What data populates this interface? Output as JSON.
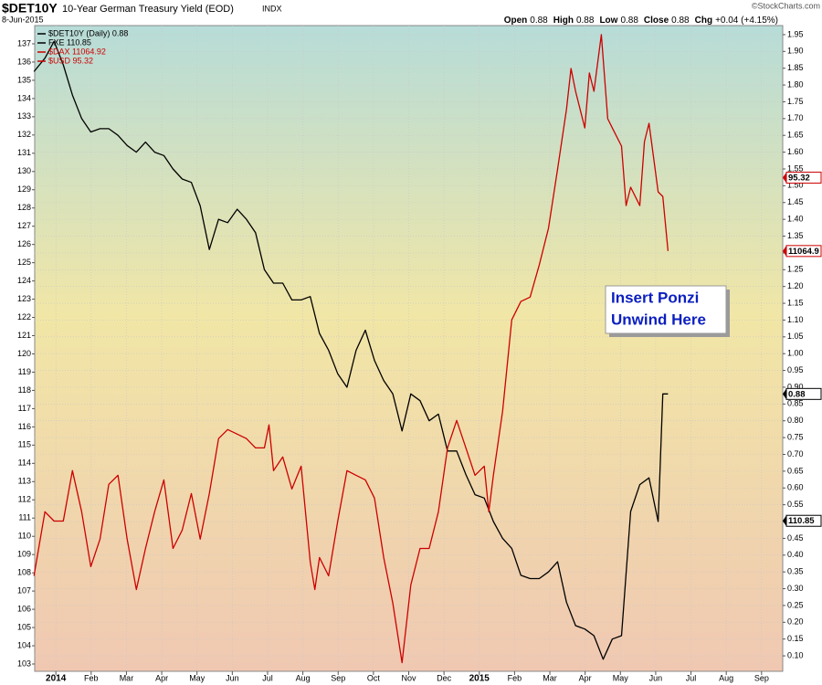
{
  "header": {
    "symbol": "$DET10Y",
    "name": "10-Year German Treasury Yield (EOD)",
    "exchange": "INDX",
    "date": "8-Jun-2015",
    "quote": [
      {
        "label": "Open",
        "value": "0.88"
      },
      {
        "label": "High",
        "value": "0.88"
      },
      {
        "label": "Low",
        "value": "0.88"
      },
      {
        "label": "Close",
        "value": "0.88"
      },
      {
        "label": "Chg",
        "value": "+0.04 (+4.15%)"
      }
    ],
    "credit": "©StockCharts.com"
  },
  "chart_data": {
    "type": "line",
    "annotation": [
      "Insert Ponzi",
      "Unwind Here"
    ],
    "xlim": [
      -0.6,
      20.6
    ],
    "xticks": [
      {
        "value": 0,
        "label": "2014"
      },
      {
        "value": 1,
        "label": "Feb"
      },
      {
        "value": 2,
        "label": "Mar"
      },
      {
        "value": 3,
        "label": "Apr"
      },
      {
        "value": 4,
        "label": "May"
      },
      {
        "value": 5,
        "label": "Jun"
      },
      {
        "value": 6,
        "label": "Jul"
      },
      {
        "value": 7,
        "label": "Aug"
      },
      {
        "value": 8,
        "label": "Sep"
      },
      {
        "value": 9,
        "label": "Oct"
      },
      {
        "value": 10,
        "label": "Nov"
      },
      {
        "value": 11,
        "label": "Dec"
      },
      {
        "value": 12,
        "label": "2015"
      },
      {
        "value": 13,
        "label": "Feb"
      },
      {
        "value": 14,
        "label": "Mar"
      },
      {
        "value": 15,
        "label": "Apr"
      },
      {
        "value": 16,
        "label": "May"
      },
      {
        "value": 17,
        "label": "Jun"
      },
      {
        "value": 18,
        "label": "Jul"
      },
      {
        "value": 19,
        "label": "Aug"
      },
      {
        "value": 20,
        "label": "Sep"
      }
    ],
    "ylim": [
      102.6,
      138
    ],
    "yticks": [
      103,
      104,
      105,
      106,
      107,
      108,
      109,
      110,
      111,
      112,
      113,
      114,
      115,
      116,
      117,
      118,
      119,
      120,
      121,
      122,
      123,
      124,
      125,
      126,
      127,
      128,
      129,
      130,
      131,
      132,
      133,
      134,
      135,
      136,
      137
    ],
    "y2lim": [
      0.054,
      1.977
    ],
    "y2ticks": [
      {
        "value": 0.1,
        "label": "0.10"
      },
      0.15,
      {
        "value": 0.2,
        "label": "0.20"
      },
      0.25,
      {
        "value": 0.3,
        "label": "0.30"
      },
      0.35,
      {
        "value": 0.4,
        "label": "0.40"
      },
      0.45,
      {
        "value": 0.5,
        "label": "0.50"
      },
      0.55,
      {
        "value": 0.6,
        "label": "0.60"
      },
      0.65,
      {
        "value": 0.7,
        "label": "0.70"
      },
      0.75,
      {
        "value": 0.8,
        "label": "0.80"
      },
      0.85,
      {
        "value": 0.9,
        "label": "0.90"
      },
      0.95,
      {
        "value": 1,
        "label": "1.00"
      },
      1.05,
      {
        "value": 1.1,
        "label": "1.10"
      },
      1.15,
      {
        "value": 1.2,
        "label": "1.20"
      },
      1.25,
      {
        "value": 1.3,
        "label": "1.30"
      },
      1.35,
      {
        "value": 1.4,
        "label": "1.40"
      },
      1.45,
      {
        "value": 1.5,
        "label": "1.50"
      },
      1.55,
      {
        "value": 1.6,
        "label": "1.60"
      },
      1.65,
      {
        "value": 1.7,
        "label": "1.70"
      },
      1.75,
      {
        "value": 1.8,
        "label": "1.80"
      },
      1.85,
      {
        "value": 1.9,
        "label": "1.90"
      },
      1.95
    ],
    "y3lim": [
      8520,
      12430
    ],
    "y4lim": [
      78.5,
      100.5
    ],
    "grid": true,
    "legend": "upper left",
    "series": [
      {
        "name": "$DET10Y (Daily) 0.88",
        "color": "#000000",
        "axis": "y2",
        "x": [
          -0.62,
          -0.31,
          -0.05,
          0.21,
          0.47,
          0.73,
          0.99,
          1.25,
          1.5,
          1.76,
          2.02,
          2.28,
          2.54,
          2.8,
          3.06,
          3.32,
          3.58,
          3.84,
          4.09,
          4.35,
          4.61,
          4.87,
          5.14,
          5.4,
          5.66,
          5.91,
          6.17,
          6.43,
          6.69,
          6.95,
          7.21,
          7.47,
          7.73,
          7.99,
          8.25,
          8.51,
          8.77,
          9.03,
          9.29,
          9.55,
          9.81,
          10.06,
          10.32,
          10.58,
          10.84,
          11.1,
          11.36,
          11.62,
          11.88,
          12.14,
          12.4,
          12.66,
          12.92,
          13.18,
          13.44,
          13.7,
          13.96,
          14.22,
          14.47,
          14.73,
          14.99,
          15.25,
          15.51,
          15.77,
          16.03,
          16.29,
          16.55,
          16.81,
          17.07,
          17.2,
          17.35
        ],
        "values": [
          1.84,
          1.88,
          1.93,
          1.86,
          1.77,
          1.7,
          1.66,
          1.67,
          1.67,
          1.65,
          1.62,
          1.6,
          1.63,
          1.6,
          1.59,
          1.55,
          1.52,
          1.51,
          1.44,
          1.31,
          1.4,
          1.39,
          1.43,
          1.4,
          1.36,
          1.25,
          1.21,
          1.21,
          1.16,
          1.16,
          1.17,
          1.06,
          1.01,
          0.94,
          0.9,
          1.01,
          1.07,
          0.98,
          0.92,
          0.88,
          0.77,
          0.88,
          0.86,
          0.8,
          0.82,
          0.71,
          0.71,
          0.64,
          0.58,
          0.57,
          0.5,
          0.45,
          0.42,
          0.34,
          0.33,
          0.33,
          0.35,
          0.38,
          0.26,
          0.19,
          0.18,
          0.16,
          0.09,
          0.15,
          0.16,
          0.53,
          0.61,
          0.63,
          0.5,
          0.88,
          0.88
        ]
      },
      {
        "name": "FXE 110.85",
        "color": "#000000",
        "axis": "y",
        "last": 110.85
      },
      {
        "name": "$DAX 11064.92",
        "color": "#cc0000",
        "axis": "y3",
        "last_label": "11064.9",
        "x": [
          -0.62,
          -0.31,
          -0.05,
          0.21,
          0.47,
          0.73,
          0.99,
          1.25,
          1.5,
          1.76,
          2.02,
          2.28,
          2.54,
          2.8,
          3.06,
          3.32,
          3.58,
          3.84,
          4.09,
          4.35,
          4.61,
          4.87,
          5.14,
          5.4,
          5.66,
          5.91,
          6.04,
          6.17,
          6.43,
          6.69,
          6.95,
          7.21,
          7.34,
          7.47,
          7.73,
          7.99,
          8.25,
          8.51,
          8.77,
          9.03,
          9.29,
          9.55,
          9.81,
          10.06,
          10.32,
          10.58,
          10.84,
          11.1,
          11.36,
          11.62,
          11.88,
          12.14,
          12.27,
          12.4,
          12.66,
          12.92,
          13.18,
          13.44,
          13.7,
          13.96,
          14.22,
          14.47,
          14.6,
          14.73,
          14.99,
          15.12,
          15.25,
          15.46,
          15.64,
          15.77,
          16.03,
          16.16,
          16.29,
          16.55,
          16.68,
          16.81,
          17.07,
          17.2,
          17.35
        ],
        "values": [
          9098,
          9486,
          9430,
          9430,
          9735,
          9486,
          9154,
          9320,
          9652,
          9707,
          9320,
          9015,
          9264,
          9486,
          9679,
          9264,
          9375,
          9596,
          9320,
          9596,
          9929,
          9984,
          9956,
          9929,
          9873,
          9873,
          10012,
          9735,
          9818,
          9624,
          9762,
          9181,
          9015,
          9209,
          9098,
          9430,
          9735,
          9707,
          9679,
          9569,
          9209,
          8932,
          8572,
          9043,
          9264,
          9264,
          9486,
          9873,
          10039,
          9873,
          9707,
          9762,
          9486,
          9707,
          10095,
          10648,
          10759,
          10786,
          10980,
          11202,
          11561,
          11921,
          12170,
          12032,
          11810,
          12143,
          12032,
          12375,
          11866,
          11810,
          11700,
          11340,
          11451,
          11340,
          11727,
          11838,
          11423,
          11395,
          11064.92
        ]
      },
      {
        "name": "$USD 95.32",
        "color": "#cc0000",
        "axis": "y4",
        "last": 95.32
      }
    ]
  }
}
